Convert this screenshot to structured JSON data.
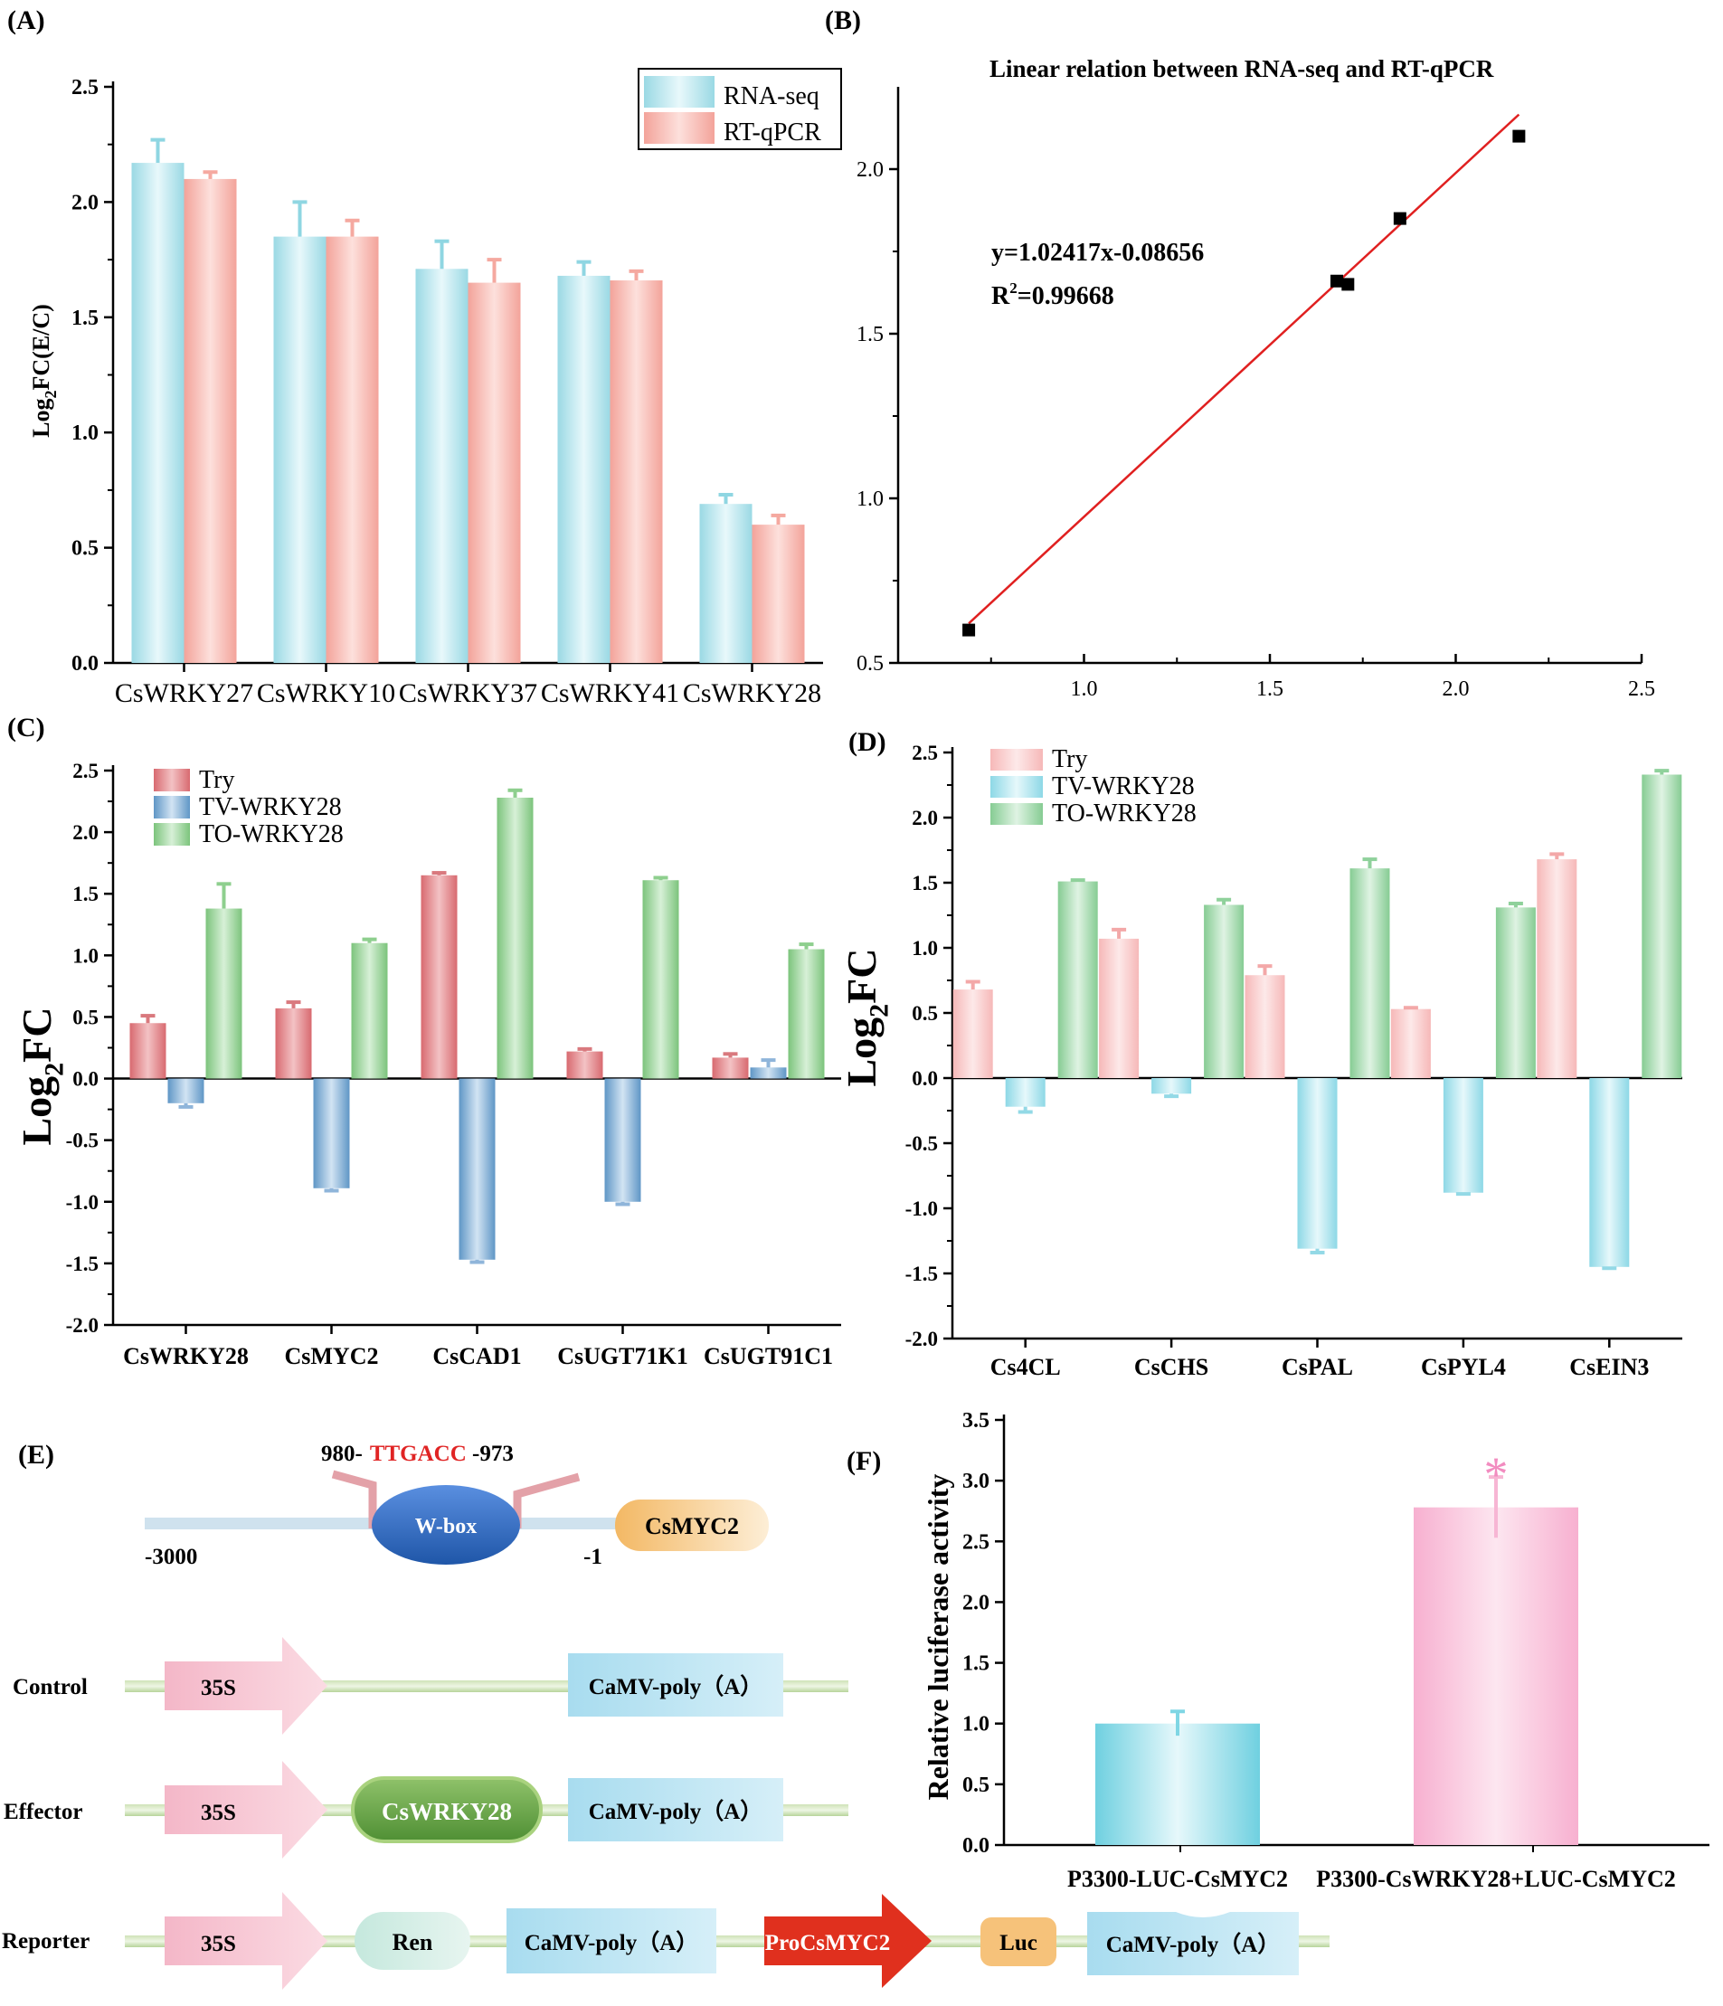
{
  "panel_labels": {
    "a": "(A)",
    "b": "(B)",
    "c": "(C)",
    "d": "(D)",
    "e": "(E)",
    "f": "(F)"
  },
  "chart_data": [
    {
      "id": "A",
      "type": "bar",
      "title": "",
      "xlabel": "",
      "ylabel_main": "Log",
      "ylabel_sub": "2",
      "ylabel_rest": "FC(E/C)",
      "ylim": [
        0,
        2.5
      ],
      "yticks": [
        "0.0",
        "0.5",
        "1.0",
        "1.5",
        "2.0",
        "2.5"
      ],
      "categories": [
        "CsWRKY27",
        "CsWRKY10",
        "CsWRKY37",
        "CsWRKY41",
        "CsWRKY28"
      ],
      "series": [
        {
          "name": "RNA-seq",
          "color": "#8fd6e2",
          "values": [
            2.17,
            1.85,
            1.71,
            1.68,
            0.69
          ],
          "errors": [
            0.1,
            0.15,
            0.12,
            0.06,
            0.04
          ]
        },
        {
          "name": "RT-qPCR",
          "color": "#f5a9a0",
          "values": [
            2.1,
            1.85,
            1.65,
            1.66,
            0.6
          ],
          "errors": [
            0.03,
            0.07,
            0.1,
            0.04,
            0.04
          ]
        }
      ],
      "legend": "top-right",
      "grid": false
    },
    {
      "id": "B",
      "type": "scatter",
      "title": "Linear relation between RNA-seq and RT-qPCR",
      "xlim": [
        0.5,
        2.5
      ],
      "ylim": [
        0.5,
        2.25
      ],
      "xticks": [
        "1.0",
        "1.5",
        "2.0",
        "2.5"
      ],
      "yticks": [
        "0.5",
        "1.0",
        "1.5",
        "2.0"
      ],
      "x": [
        0.69,
        1.68,
        1.71,
        1.85,
        2.17
      ],
      "y": [
        0.6,
        1.66,
        1.65,
        1.85,
        2.1
      ],
      "fit": {
        "slope": 1.02417,
        "intercept": -0.08656,
        "color": "#e02020"
      },
      "equation": "y=1.02417x-0.08656",
      "r2_label": "R",
      "r2_sup": "2",
      "r2_value": "=0.99668",
      "grid": false
    },
    {
      "id": "C",
      "type": "bar",
      "ylabel_main": "Log",
      "ylabel_sub": "2",
      "ylabel_rest": "FC",
      "ylim": [
        -2.0,
        2.5
      ],
      "yticks": [
        "-2.0",
        "-1.5",
        "-1.0",
        "-0.5",
        "0.0",
        "0.5",
        "1.0",
        "1.5",
        "2.0",
        "2.5"
      ],
      "categories": [
        "CsWRKY28",
        "CsMYC2",
        "CsCAD1",
        "CsUGT71K1",
        "CsUGT91C1"
      ],
      "series": [
        {
          "name": "Try",
          "color": "#d9797e",
          "values": [
            0.45,
            0.57,
            1.65,
            0.22,
            0.17
          ],
          "errors": [
            0.06,
            0.05,
            0.02,
            0.02,
            0.03
          ]
        },
        {
          "name": "TV-WRKY28",
          "color": "#6fa3cf",
          "values": [
            -0.2,
            -0.89,
            -1.47,
            -1.0,
            0.09
          ],
          "errors": [
            0.03,
            0.02,
            0.02,
            0.02,
            0.06
          ]
        },
        {
          "name": "TO-WRKY28",
          "color": "#8ecf8e",
          "values": [
            1.38,
            1.1,
            2.28,
            1.61,
            1.05
          ],
          "errors": [
            0.2,
            0.03,
            0.06,
            0.02,
            0.04
          ]
        }
      ],
      "legend": "top-left",
      "grid": false
    },
    {
      "id": "D",
      "type": "bar",
      "ylabel_main": "Log",
      "ylabel_sub": "2",
      "ylabel_rest": "FC",
      "ylim": [
        -2.0,
        2.5
      ],
      "yticks": [
        "-2.0",
        "-1.5",
        "-1.0",
        "-0.5",
        "0.0",
        "0.5",
        "1.0",
        "1.5",
        "2.0",
        "2.5"
      ],
      "categories": [
        "Cs4CL",
        "CsCHS",
        "CsPAL",
        "CsPYL4",
        "CsEIN3"
      ],
      "series": [
        {
          "name": "Try",
          "color": "#f7c0c0",
          "values": [
            0.68,
            1.07,
            0.79,
            0.53,
            1.68
          ],
          "errors": [
            0.06,
            0.07,
            0.07,
            0.01,
            0.04
          ]
        },
        {
          "name": "TV-WRKY28",
          "color": "#93d9e6",
          "values": [
            -0.22,
            -0.12,
            -1.31,
            -0.88,
            -1.45
          ],
          "errors": [
            0.04,
            0.02,
            0.03,
            0.01,
            0.01
          ]
        },
        {
          "name": "TO-WRKY28",
          "color": "#8fd19b",
          "values": [
            1.51,
            1.33,
            1.61,
            1.31,
            2.33
          ],
          "errors": [
            0.01,
            0.04,
            0.07,
            0.03,
            0.03
          ]
        }
      ],
      "legend": "top-left",
      "grid": false
    },
    {
      "id": "F",
      "type": "bar",
      "ylabel": "Relative luciferase activity",
      "ylim": [
        0,
        3.5
      ],
      "yticks": [
        "0.0",
        "0.5",
        "1.0",
        "1.5",
        "2.0",
        "2.5",
        "3.0",
        "3.5"
      ],
      "categories": [
        "P3300-LUC-CsMYC2",
        "P3300-CsWRKY28+LUC-CsMYC2"
      ],
      "values": [
        1.0,
        2.78
      ],
      "errors": [
        0.1,
        0.25
      ],
      "colors": [
        "#7fd6e4",
        "#f7b6d4"
      ],
      "annotation": "*",
      "grid": false
    }
  ],
  "diagram": {
    "promoter": {
      "range_left": "980-",
      "motif": "TTGACC",
      "range_right": " -973",
      "element": "W-box",
      "start": "-3000",
      "end": "-1",
      "gene": "CsMYC2"
    },
    "constructs": {
      "control": {
        "label": "Control",
        "promoter": "35S",
        "terminator": "CaMV-poly（A）"
      },
      "effector": {
        "label": "Effector",
        "promoter": "35S",
        "gene": "CsWRKY28",
        "terminator": "CaMV-poly（A）"
      },
      "reporter": {
        "label": "Reporter",
        "promoter": "35S",
        "ren": "Ren",
        "terminator1": "CaMV-poly（A）",
        "pro": "ProCsMYC2",
        "luc": "Luc",
        "terminator2": "CaMV-poly（A）"
      }
    }
  }
}
